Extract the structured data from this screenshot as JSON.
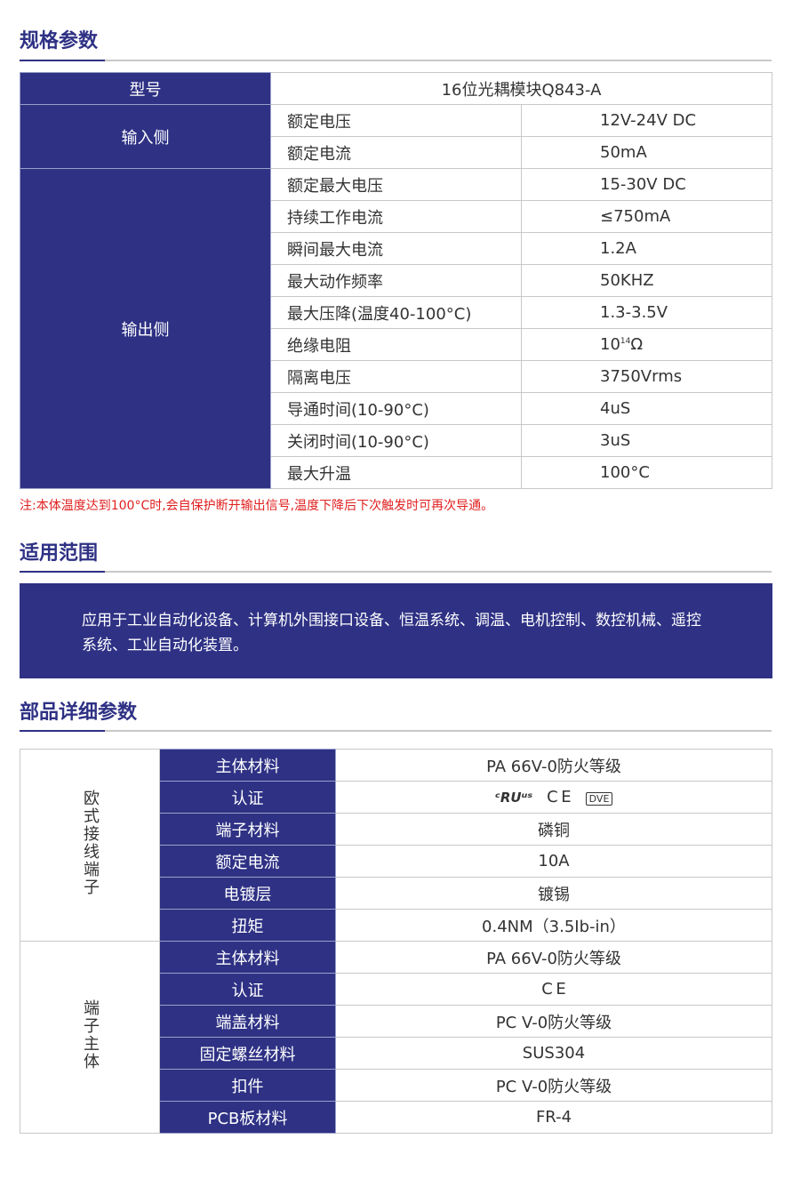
{
  "spec": {
    "title": "规格参数",
    "model_label": "型号",
    "model_value": "16位光耦模块Q843-A",
    "input_label": "输入侧",
    "input_rows": [
      {
        "k": "额定电压",
        "v": "12V-24V DC"
      },
      {
        "k": "额定电流",
        "v": "50mA"
      }
    ],
    "output_label": "输出侧",
    "output_rows": [
      {
        "k": "额定最大电压",
        "v": "15-30V DC"
      },
      {
        "k": "持续工作电流",
        "v": "≤750mA"
      },
      {
        "k": "瞬间最大电流",
        "v": "1.2A"
      },
      {
        "k": "最大动作频率",
        "v": "50KHZ"
      },
      {
        "k": "最大压降(温度40-100°C)",
        "v": "1.3-3.5V"
      },
      {
        "k": "绝缘电阻",
        "v": "10",
        "sup": "14",
        "unit": "Ω"
      },
      {
        "k": "隔离电压",
        "v": "3750Vrms"
      },
      {
        "k": "导通时间(10-90°C)",
        "v": "4uS"
      },
      {
        "k": "关闭时间(10-90°C)",
        "v": "3uS"
      },
      {
        "k": "最大升温",
        "v": "100°C"
      }
    ],
    "note": "注:本体温度达到100°C时,会自保护断开输出信号,温度下降后下次触发时可再次导通。"
  },
  "scope": {
    "title": "适用范围",
    "text": "应用于工业自动化设备、计算机外围接口设备、恒温系统、调温、电机控制、数控机械、遥控系统、工业自动化装置。"
  },
  "parts": {
    "title": "部品详细参数",
    "group1": {
      "label": "欧式接线端子",
      "rows": [
        {
          "k": "主体材料",
          "v": "PA 66V-0防火等级"
        },
        {
          "k": "认证",
          "v": "",
          "icons": [
            "cul-us-icon",
            "ce-icon",
            "vde-icon"
          ]
        },
        {
          "k": "端子材料",
          "v": "磷铜"
        },
        {
          "k": "额定电流",
          "v": "10A"
        },
        {
          "k": "电镀层",
          "v": "镀锡"
        },
        {
          "k": "扭矩",
          "v": "0.4NM（3.5Ib-in）"
        }
      ]
    },
    "group2": {
      "label": "端子主体",
      "rows": [
        {
          "k": "主体材料",
          "v": "PA 66V-0防火等级"
        },
        {
          "k": "认证",
          "v": "",
          "icons": [
            "ce-icon"
          ]
        },
        {
          "k": "端盖材料",
          "v": "PC V-0防火等级"
        },
        {
          "k": "固定螺丝材料",
          "v": "SUS304"
        },
        {
          "k": "扣件",
          "v": "PC V-0防火等级"
        },
        {
          "k": "PCB板材料",
          "v": "FR-4"
        }
      ]
    }
  },
  "colors": {
    "brand": "#2e3184",
    "note": "#e02020"
  }
}
